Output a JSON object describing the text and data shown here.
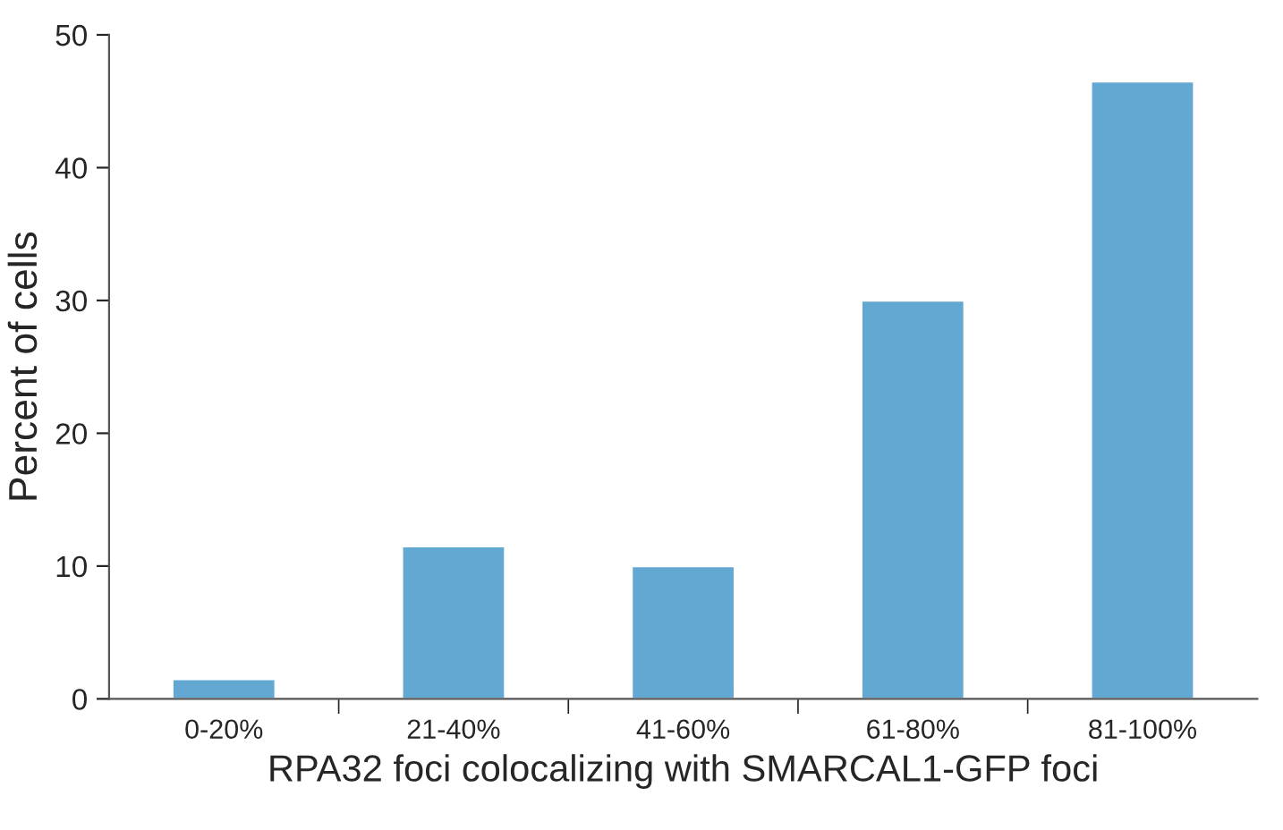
{
  "chart_data": {
    "type": "bar",
    "xlabel": "RPA32 foci colocalizing with SMARCAL1-GFP foci",
    "ylabel": "Percent of cells",
    "categories": [
      "0-20%",
      "21-40%",
      "41-60%",
      "61-80%",
      "81-100%"
    ],
    "values": [
      1.5,
      11.5,
      10,
      30,
      46.5
    ],
    "color": "#62a8d3",
    "ylim": [
      0,
      50
    ],
    "yticks": [
      0,
      10,
      20,
      30,
      40,
      50
    ],
    "grid": false
  }
}
